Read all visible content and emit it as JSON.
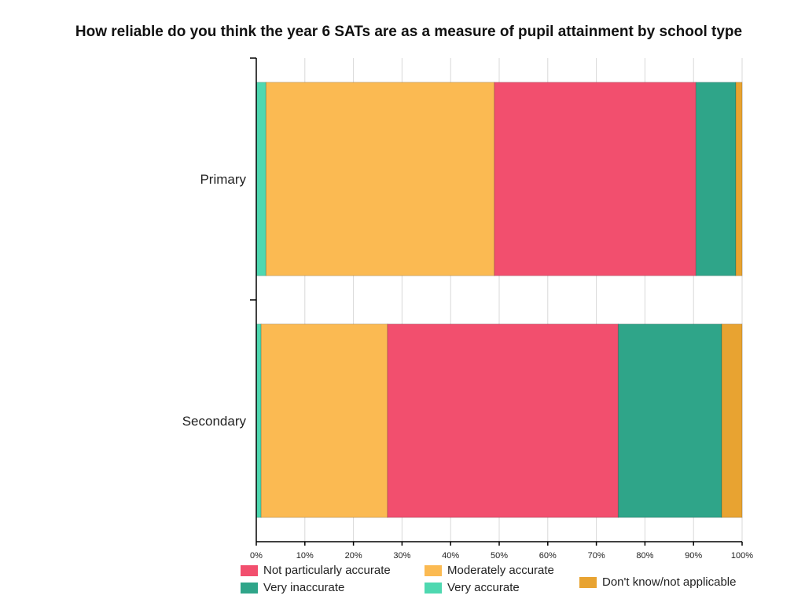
{
  "chart_data": {
    "type": "bar",
    "orientation": "horizontal",
    "stacked": true,
    "title": "How reliable do you think the year 6 SATs are as a measure of pupil attainment by school type",
    "categories": [
      "Primary",
      "Secondary"
    ],
    "xlabel": "",
    "ylabel": "",
    "xlim": [
      0,
      100
    ],
    "x_ticks": [
      "0%",
      "10%",
      "20%",
      "30%",
      "40%",
      "50%",
      "60%",
      "70%",
      "80%",
      "90%",
      "100%"
    ],
    "grid": true,
    "legend_position": "bottom",
    "series": [
      {
        "name": "Very accurate",
        "color": "#4ed8b0",
        "values": [
          2,
          1
        ]
      },
      {
        "name": "Moderately accurate",
        "color": "#fbba52",
        "values": [
          47,
          26
        ]
      },
      {
        "name": "Not particularly accurate",
        "color": "#f24f6e",
        "values": [
          41.5,
          47.5
        ]
      },
      {
        "name": "Very inaccurate",
        "color": "#2fa589",
        "values": [
          8.2,
          21.3
        ]
      },
      {
        "name": "Don't know/not applicable",
        "color": "#e8a331",
        "values": [
          1.3,
          4.7
        ]
      }
    ],
    "legend": [
      {
        "name": "Not particularly accurate",
        "color": "#f24f6e"
      },
      {
        "name": "Moderately accurate",
        "color": "#fbba52"
      },
      {
        "name": "Don't know/not applicable",
        "color": "#e8a331"
      },
      {
        "name": "Very inaccurate",
        "color": "#2fa589"
      },
      {
        "name": "Very accurate",
        "color": "#4ed8b0"
      }
    ]
  }
}
